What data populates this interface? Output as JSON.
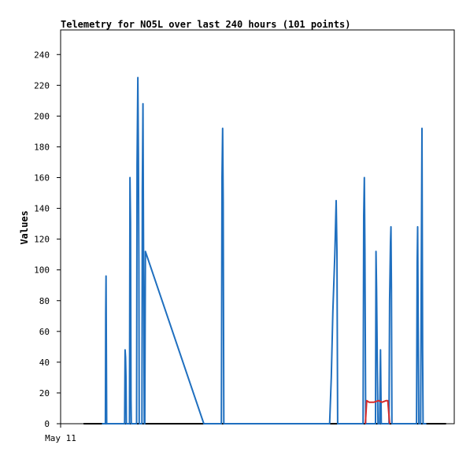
{
  "chart_data": {
    "type": "line",
    "title": "Telemetry for NO5L over last 240 hours (101 points)",
    "xlabel": "",
    "ylabel": "Values",
    "x_tick_labels": [
      "May 11"
    ],
    "y_ticks": [
      0,
      20,
      40,
      60,
      80,
      100,
      120,
      140,
      160,
      180,
      200,
      220,
      240
    ],
    "ylim": [
      0,
      256
    ],
    "xlim": [
      0,
      240
    ],
    "grid": false,
    "legend": "none",
    "series": [
      {
        "color": "#1f6fbf",
        "points": [
          [
            25.2,
            0
          ],
          [
            27.3,
            0
          ],
          [
            27.5,
            72
          ],
          [
            27.7,
            96
          ],
          [
            27.9,
            48
          ],
          [
            28.1,
            0
          ],
          [
            39.0,
            0
          ],
          [
            39.3,
            48
          ],
          [
            39.6,
            43
          ],
          [
            39.9,
            28
          ],
          [
            40.1,
            0
          ],
          [
            42.0,
            0
          ],
          [
            42.3,
            160
          ],
          [
            42.6,
            131
          ],
          [
            42.9,
            16
          ],
          [
            43.1,
            0
          ],
          [
            46.3,
            0
          ],
          [
            46.6,
            168
          ],
          [
            47.1,
            225
          ],
          [
            47.4,
            175
          ],
          [
            47.7,
            106
          ],
          [
            47.9,
            0
          ],
          [
            49.6,
            0
          ],
          [
            49.8,
            152
          ],
          [
            50.2,
            208
          ],
          [
            50.6,
            103
          ],
          [
            51.0,
            0
          ],
          [
            51.3,
            0
          ],
          [
            51.7,
            112
          ],
          [
            87.3,
            0
          ],
          [
            98.0,
            0
          ],
          [
            98.4,
            160
          ],
          [
            98.8,
            192
          ],
          [
            99.1,
            144
          ],
          [
            99.5,
            0
          ],
          [
            164.0,
            0
          ],
          [
            165.0,
            30
          ],
          [
            166.0,
            73
          ],
          [
            167.2,
            110
          ],
          [
            168.0,
            145
          ],
          [
            168.5,
            112
          ],
          [
            168.9,
            0
          ],
          [
            184.4,
            0
          ],
          [
            184.8,
            135
          ],
          [
            185.2,
            160
          ],
          [
            185.5,
            113
          ],
          [
            186.0,
            0
          ],
          [
            192.0,
            0
          ],
          [
            192.3,
            112
          ],
          [
            192.6,
            88
          ],
          [
            193.0,
            48
          ],
          [
            193.5,
            0
          ],
          [
            194.5,
            0
          ],
          [
            195.0,
            48
          ],
          [
            195.5,
            0
          ],
          [
            200.2,
            0
          ],
          [
            200.6,
            80
          ],
          [
            201.1,
            118
          ],
          [
            201.4,
            128
          ],
          [
            201.7,
            87
          ],
          [
            202.0,
            0
          ],
          [
            217.0,
            0
          ],
          [
            217.4,
            104
          ],
          [
            217.7,
            128
          ],
          [
            218.0,
            64
          ],
          [
            218.4,
            0
          ],
          [
            219.5,
            0
          ],
          [
            219.9,
            96
          ],
          [
            220.3,
            192
          ],
          [
            220.7,
            48
          ],
          [
            221.0,
            0
          ],
          [
            223.0,
            0
          ]
        ]
      },
      {
        "color": "#d62a2a",
        "points": [
          [
            185.8,
            0
          ],
          [
            186.6,
            15
          ],
          [
            188.0,
            14
          ],
          [
            191.0,
            14
          ],
          [
            193.8,
            15
          ],
          [
            196.0,
            14
          ],
          [
            198.5,
            15
          ],
          [
            199.5,
            15
          ],
          [
            200.6,
            0
          ]
        ]
      }
    ]
  }
}
